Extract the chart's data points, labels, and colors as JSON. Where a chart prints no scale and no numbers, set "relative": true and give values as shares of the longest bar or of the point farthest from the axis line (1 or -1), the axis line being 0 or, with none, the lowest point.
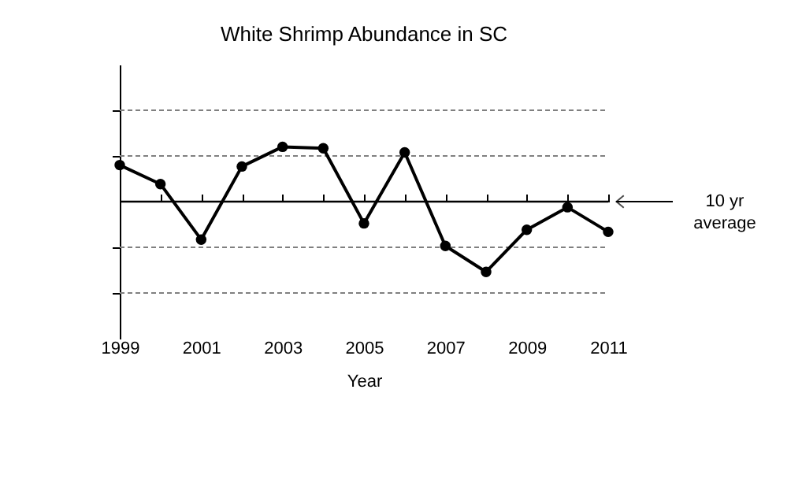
{
  "chart_data": {
    "type": "line",
    "title": "White Shrimp Abundance in SC",
    "xlabel": "Year",
    "relative": true,
    "x": [
      1999,
      2000,
      2001,
      2002,
      2003,
      2004,
      2005,
      2006,
      2007,
      2008,
      2009,
      2010,
      2011
    ],
    "series": [
      {
        "color": "#000000",
        "values": [
          0.52,
          0.25,
          -0.54,
          0.5,
          0.78,
          0.76,
          -0.31,
          0.7,
          -0.63,
          -1,
          -0.4,
          -0.08,
          -0.43
        ]
      }
    ],
    "xlim": [
      1999,
      2011
    ],
    "xticks": [
      1999,
      {
        "value": 2000,
        "label": null
      },
      2001,
      {
        "value": 2002,
        "label": null
      },
      2003,
      {
        "value": 2004,
        "label": null
      },
      2005,
      {
        "value": 2006,
        "label": null
      },
      2007,
      {
        "value": 2008,
        "label": null
      },
      2009,
      {
        "value": 2010,
        "label": null
      },
      2011
    ],
    "ref_lines": [
      {
        "axis": "y",
        "value": 0,
        "label": "10 yr average",
        "color": "#000000"
      },
      {
        "axis": "y",
        "value": 1.3,
        "color": "#808080",
        "line_style": "dashed"
      },
      {
        "axis": "y",
        "value": 0.65,
        "color": "#808080",
        "line_style": "dashed"
      },
      {
        "axis": "y",
        "value": -0.65,
        "color": "#808080",
        "line_style": "dashed"
      },
      {
        "axis": "y",
        "value": -1.3,
        "color": "#808080",
        "line_style": "dashed"
      }
    ],
    "tick_labels": "x",
    "marker": "circle",
    "line_style": "solid"
  }
}
